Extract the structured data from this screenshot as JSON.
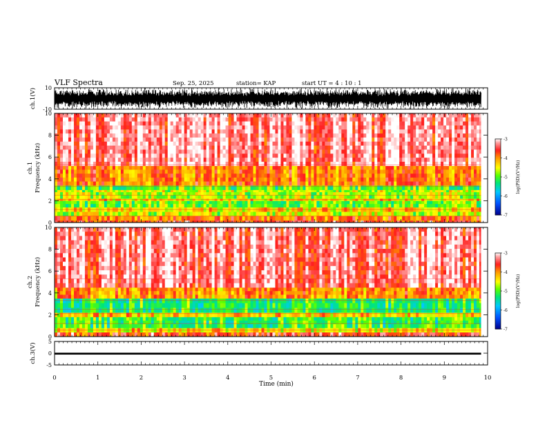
{
  "header": {
    "title": "VLF Spectra",
    "date": "Sep. 25, 2025",
    "station": "station= KAP",
    "start": "start  UT  =   4 : 10 : 1"
  },
  "chart_data": [
    {
      "type": "line",
      "name": "ch1-waveform",
      "ylabel": "ch.1(V)",
      "ylim": [
        -10,
        10
      ],
      "yticks": [
        "10",
        "-10"
      ],
      "xlim": [
        0,
        10
      ],
      "data_xrange": [
        0,
        9.85
      ],
      "description_values": "dense oscillation filling roughly -10 to +10 V"
    },
    {
      "type": "heatmap",
      "name": "ch1-spectrogram",
      "ylabel": "ch.1\nFrequency (kHz)",
      "ylabel_lines": [
        "ch.1",
        "Frequency  (kHz)"
      ],
      "ylim": [
        0,
        10
      ],
      "yticks": [
        "0",
        "2",
        "4",
        "6",
        "8",
        "10"
      ],
      "xlim": [
        0,
        10
      ],
      "bands": [
        {
          "from": 0.0,
          "to": 0.2,
          "level": -3.6
        },
        {
          "from": 0.2,
          "to": 0.6,
          "level": -3.9
        },
        {
          "from": 0.6,
          "to": 1.0,
          "level": -4.6
        },
        {
          "from": 1.0,
          "to": 1.4,
          "level": -4.3
        },
        {
          "from": 1.4,
          "to": 2.0,
          "level": -4.9
        },
        {
          "from": 2.0,
          "to": 2.2,
          "level": -4.3
        },
        {
          "from": 2.2,
          "to": 2.8,
          "level": -4.7
        },
        {
          "from": 2.8,
          "to": 3.0,
          "level": -4.6
        },
        {
          "from": 3.0,
          "to": 3.4,
          "level": -5.0
        },
        {
          "from": 3.4,
          "to": 5.2,
          "level": -3.9
        },
        {
          "from": 5.2,
          "to": 10.0,
          "level": -3.3
        }
      ],
      "colorbar": {
        "label": "log(PSD)(V²/Hz)",
        "min": -7,
        "max": -3,
        "ticks": [
          "-3",
          "-4",
          "-5",
          "-6",
          "-7"
        ]
      }
    },
    {
      "type": "heatmap",
      "name": "ch2-spectrogram",
      "ylabel": "ch.2\nFrequency (kHz)",
      "ylabel_lines": [
        "ch.2",
        "Frequency  (kHz)"
      ],
      "ylim": [
        0,
        10
      ],
      "yticks": [
        "0",
        "2",
        "4",
        "6",
        "8",
        "10"
      ],
      "xlim": [
        0,
        10
      ],
      "bands": [
        {
          "from": 0.0,
          "to": 0.4,
          "level": -3.6
        },
        {
          "from": 0.4,
          "to": 0.8,
          "level": -4.4
        },
        {
          "from": 0.8,
          "to": 1.8,
          "level": -5.1
        },
        {
          "from": 1.8,
          "to": 2.2,
          "level": -4.3
        },
        {
          "from": 2.2,
          "to": 3.5,
          "level": -5.2
        },
        {
          "from": 3.5,
          "to": 4.5,
          "level": -4.0
        },
        {
          "from": 4.5,
          "to": 10.0,
          "level": -3.3
        }
      ],
      "colorbar": {
        "label": "log(PSD)(V²/Hz)",
        "min": -7,
        "max": -3,
        "ticks": [
          "-3",
          "-4",
          "-5",
          "-6",
          "-7"
        ]
      }
    },
    {
      "type": "line",
      "name": "ch3-waveform",
      "ylabel": "ch.3(V)",
      "ylim": [
        -5,
        5
      ],
      "yticks": [
        "5",
        "0",
        "-5"
      ],
      "xlim": [
        0,
        10
      ],
      "data_xrange": [
        0,
        9.85
      ],
      "band": [
        -0.6,
        0.2
      ]
    }
  ],
  "xaxis": {
    "label": "Time  (min)",
    "ticks": [
      "0",
      "1",
      "2",
      "3",
      "4",
      "5",
      "6",
      "7",
      "8",
      "9",
      "10"
    ]
  },
  "colors": {
    "axis": "#000000",
    "colormap": [
      "#0000a0",
      "#0060ff",
      "#00c8ff",
      "#00ff80",
      "#80ff00",
      "#ffff00",
      "#ff8000",
      "#ff0000",
      "#ffffff"
    ]
  }
}
